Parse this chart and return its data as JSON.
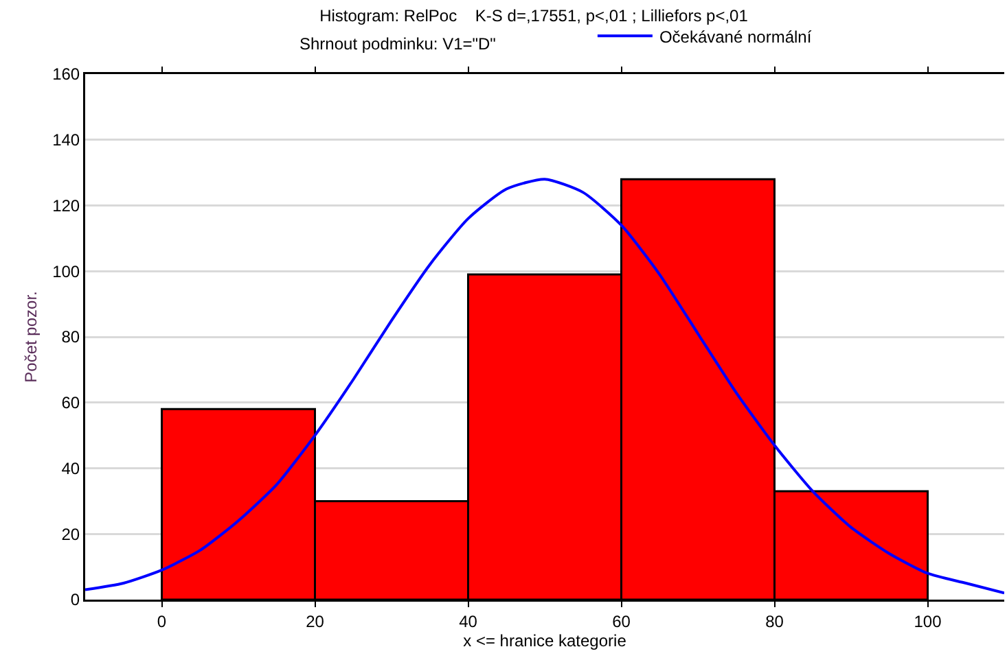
{
  "chart_data": {
    "type": "histogram",
    "title": "Histogram: RelPoc    K-S d=,17551, p<,01 ; Lilliefors p<,01",
    "subtitle": "Shrnout podminku: V1=\"D\"",
    "xlabel": "x <= hranice kategorie",
    "ylabel": "Počet pozor.",
    "bins": [
      0,
      20,
      40,
      60,
      80,
      100
    ],
    "values": [
      58,
      30,
      99,
      128,
      33
    ],
    "color": "#ff0000",
    "series": [
      {
        "name": "Očekávané normální",
        "type": "line",
        "color": "#0000ff",
        "x": [
          -10,
          -5,
          0,
          5,
          10,
          15,
          20,
          25,
          30,
          35,
          40,
          45,
          50,
          55,
          60,
          65,
          70,
          75,
          80,
          85,
          90,
          95,
          100,
          105,
          110
        ],
        "values": [
          3,
          5,
          9,
          15,
          24,
          35,
          50,
          67,
          85,
          102,
          116,
          125,
          128,
          124,
          114,
          99,
          81,
          63,
          47,
          33,
          22,
          14,
          8,
          5,
          2
        ]
      }
    ],
    "xlim": [
      -10,
      110
    ],
    "xticks": [
      0,
      20,
      40,
      60,
      80,
      100
    ],
    "ylim": [
      0,
      160
    ],
    "yticks": [
      0,
      20,
      40,
      60,
      80,
      100,
      120,
      140,
      160
    ],
    "grid": "y",
    "legend": "top",
    "line_style": "solid",
    "marker": "none"
  }
}
